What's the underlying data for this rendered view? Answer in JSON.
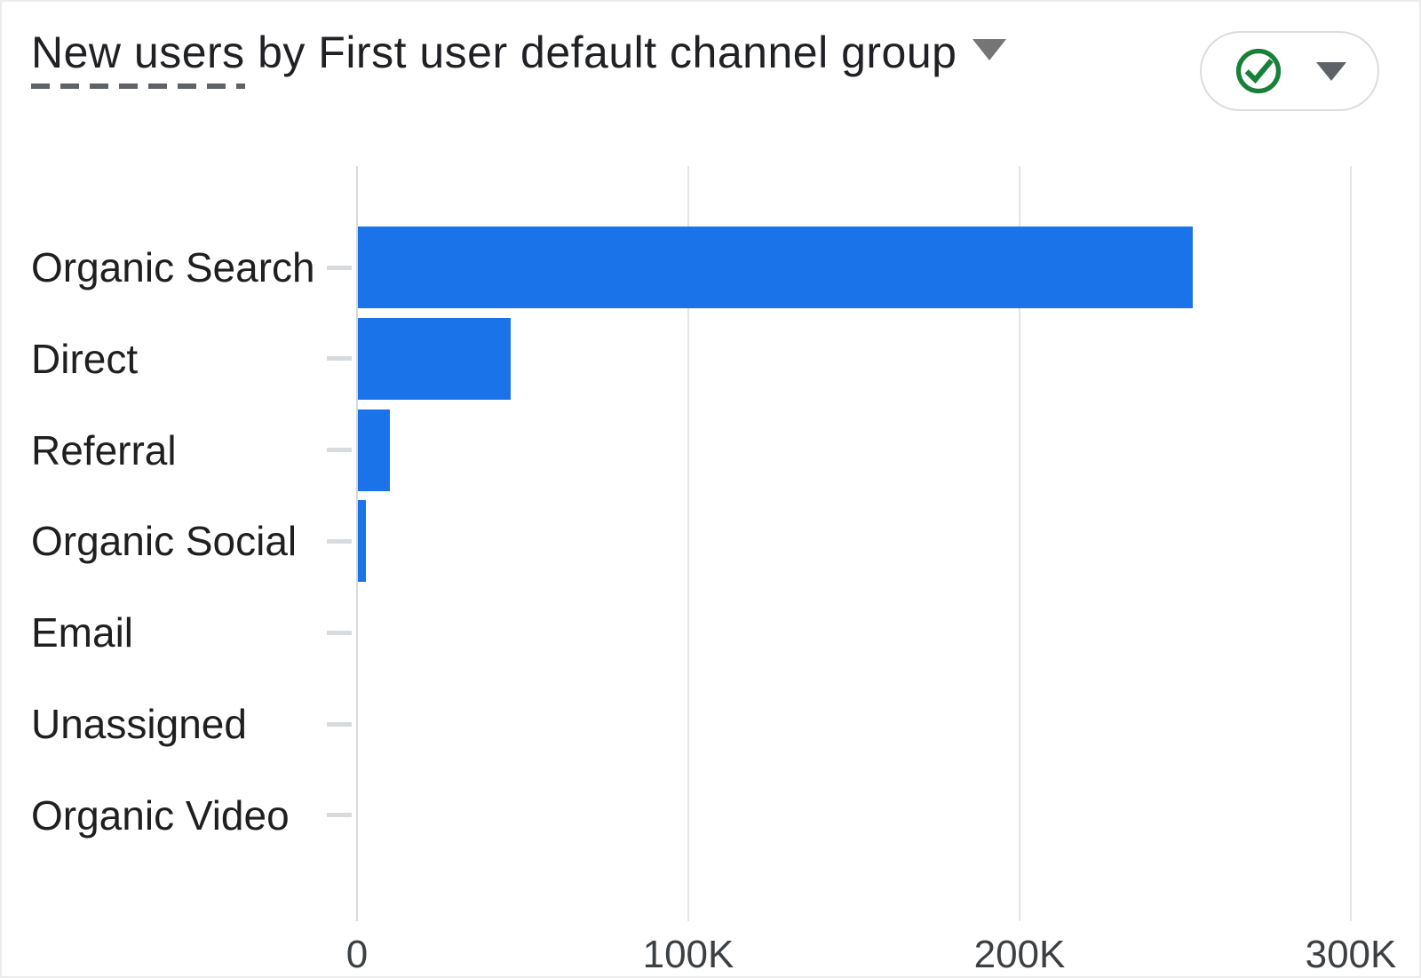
{
  "header": {
    "title_metric": "New users",
    "title_rest": " by First user default channel group",
    "title_caret_icon": "chevron-down-icon",
    "quality_button": {
      "check_icon": "check-circle-icon",
      "caret_icon": "chevron-down-icon"
    }
  },
  "colors": {
    "bar": "#1a73e8",
    "grid": "#e2e4e8",
    "zero_axis": "#d6d9dd",
    "category_tick": "#d8dbde",
    "tick_label": "#3c4043",
    "category_label": "#1f1f1f",
    "title": "#202124",
    "check_green": "#188038",
    "caret_gray": "#5f6368"
  },
  "chart_data": {
    "type": "bar",
    "orientation": "horizontal",
    "title": "New users by First user default channel group",
    "categories": [
      "Organic Search",
      "Direct",
      "Referral",
      "Organic Social",
      "Email",
      "Unassigned",
      "Organic Video"
    ],
    "values": [
      252000,
      46000,
      9600,
      2400,
      0,
      0,
      0
    ],
    "x_ticks": [
      {
        "label": "0",
        "value": 0
      },
      {
        "label": "100K",
        "value": 100000
      },
      {
        "label": "200K",
        "value": 200000
      },
      {
        "label": "300K",
        "value": 300000
      }
    ],
    "xlim": [
      0,
      308000
    ],
    "grid": true,
    "legend": false
  }
}
